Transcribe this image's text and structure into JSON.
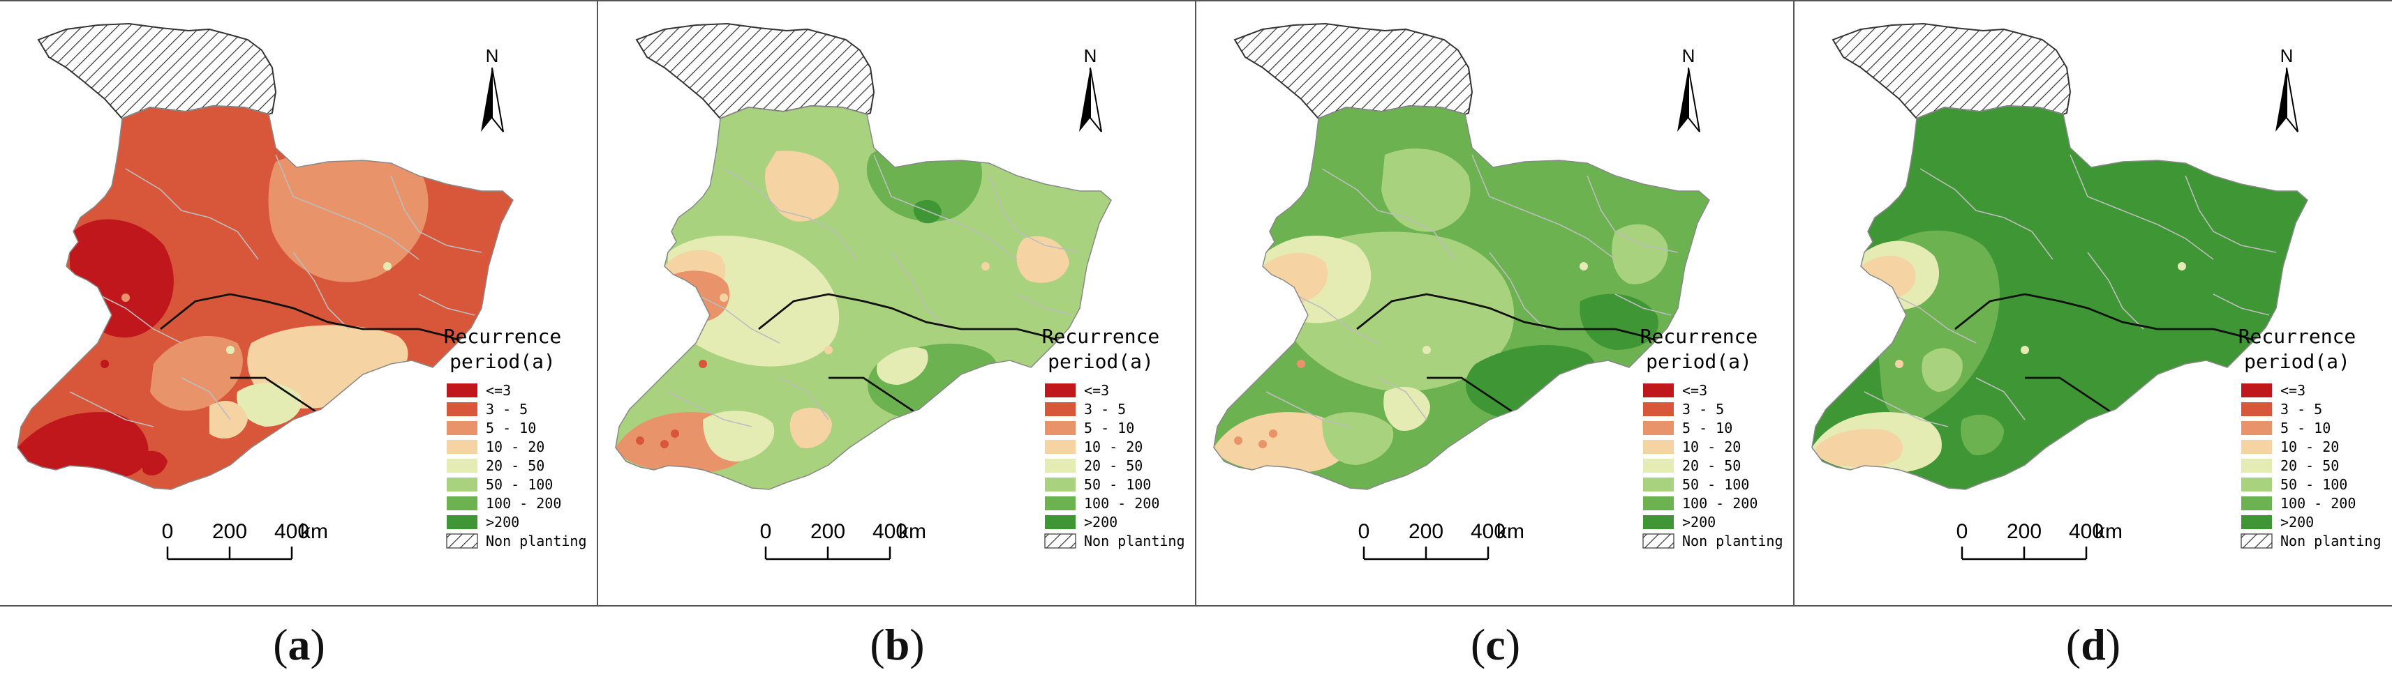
{
  "panels": [
    {
      "id": "a",
      "caption_letter": "a",
      "north": "N",
      "scale": {
        "ticks": [
          "0",
          "200",
          "400"
        ],
        "unit": "km"
      },
      "legend": {
        "title_line1": "Recurrence",
        "title_line2": "period(a)",
        "items": [
          "<=3",
          "3 - 5",
          "5 - 10",
          "10 - 20",
          "20 - 50",
          "50 - 100",
          "100 - 200",
          ">200",
          "Non planting"
        ]
      },
      "dominant_classes": [
        "<=3",
        "3 - 5",
        "5 - 10",
        "10 - 20",
        "20 - 50"
      ]
    },
    {
      "id": "b",
      "caption_letter": "b",
      "north": "N",
      "scale": {
        "ticks": [
          "0",
          "200",
          "400"
        ],
        "unit": "km"
      },
      "legend": {
        "title_line1": "Recurrence",
        "title_line2": "period(a)",
        "items": [
          "<=3",
          "3 - 5",
          "5 - 10",
          "10 - 20",
          "20 - 50",
          "50 - 100",
          "100 - 200",
          ">200",
          "Non planting"
        ]
      },
      "dominant_classes": [
        "5 - 10",
        "10 - 20",
        "20 - 50",
        "50 - 100",
        "100 - 200"
      ]
    },
    {
      "id": "c",
      "caption_letter": "c",
      "north": "N",
      "scale": {
        "ticks": [
          "0",
          "200",
          "400"
        ],
        "unit": "km"
      },
      "legend": {
        "title_line1": "Recurrence",
        "title_line2": "period(a)",
        "items": [
          "<=3",
          "3 - 5",
          "5 - 10",
          "10 - 20",
          "20 - 50",
          "50 - 100",
          "100 - 200",
          ">200",
          "Non planting"
        ]
      },
      "dominant_classes": [
        "10 - 20",
        "20 - 50",
        "50 - 100",
        "100 - 200",
        ">200"
      ]
    },
    {
      "id": "d",
      "caption_letter": "d",
      "north": "N",
      "scale": {
        "ticks": [
          "0",
          "200",
          "400"
        ],
        "unit": "km"
      },
      "legend": {
        "title_line1": "Recurrence",
        "title_line2": "period(a)",
        "items": [
          "<=3",
          "3 - 5",
          "5 - 10",
          "10 - 20",
          "20 - 50",
          "50 - 100",
          "100 - 200",
          ">200",
          "Non planting"
        ]
      },
      "dominant_classes": [
        "10 - 20",
        "20 - 50",
        "100 - 200",
        ">200"
      ]
    }
  ],
  "legend_colors": {
    "<=3": "#c0171c",
    "3 - 5": "#d8573a",
    "5 - 10": "#e9936a",
    "10 - 20": "#f6d3a3",
    "20 - 50": "#e4ecb4",
    "50 - 100": "#a9d27e",
    "100 - 200": "#6cb251",
    ">200": "#3e9634"
  }
}
